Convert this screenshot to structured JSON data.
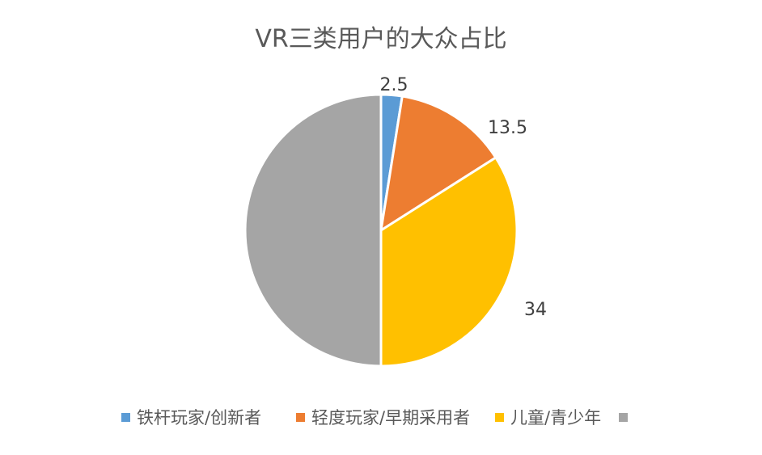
{
  "chart_data": {
    "type": "pie",
    "title": "VR三类用户的大众占比",
    "categories": [
      "铁杆玩家/创新者",
      "轻度玩家/早期采用者",
      "儿童/青少年",
      ""
    ],
    "values": [
      2.5,
      13.5,
      34,
      50
    ],
    "value_labels": [
      "2.5",
      "13.5",
      "34",
      ""
    ],
    "colors": [
      "#5B9BD5",
      "#ED7D31",
      "#FFC000",
      "#A5A5A5"
    ],
    "legend_position": "bottom",
    "start_angle_deg": 0,
    "direction": "clockwise"
  }
}
